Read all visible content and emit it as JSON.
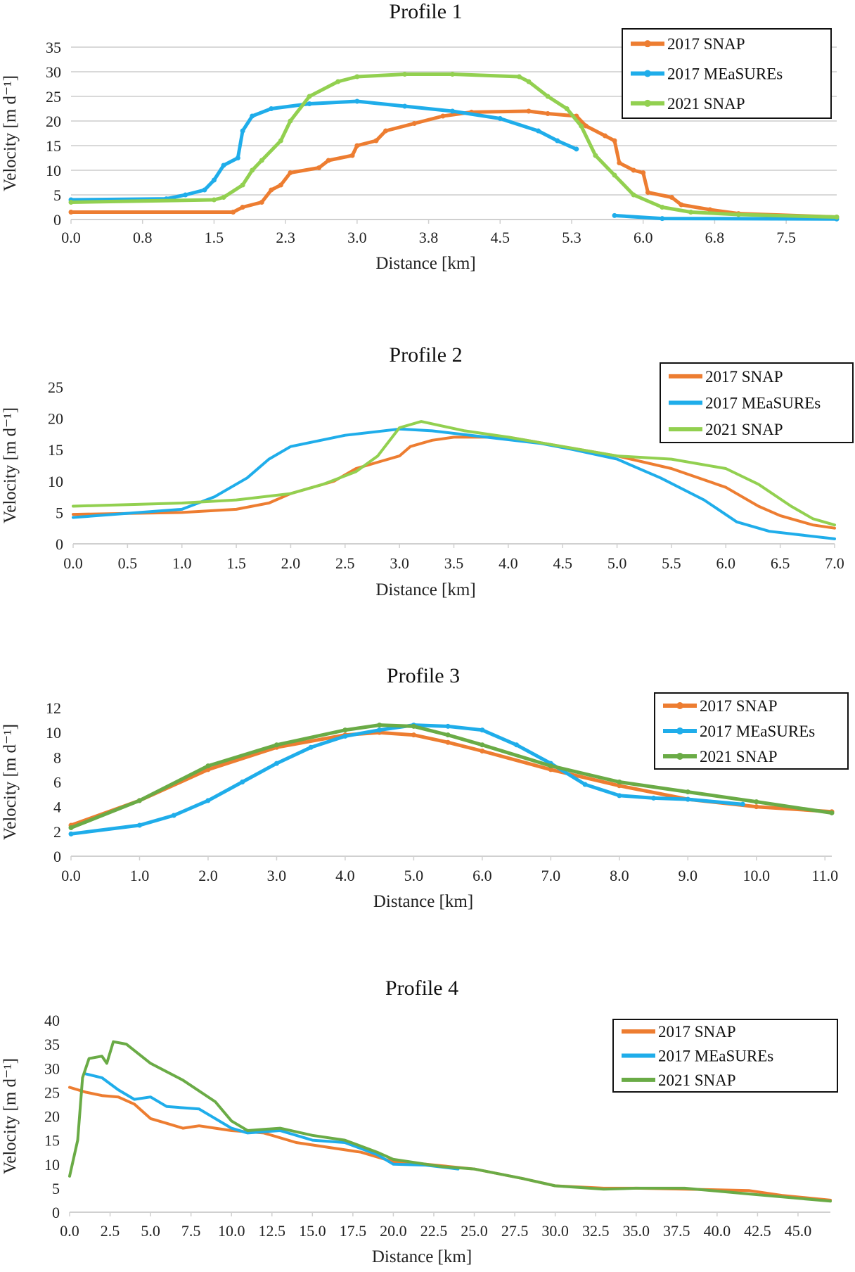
{
  "colors": {
    "snap2017": "#ED7D31",
    "measures2017": "#1FADEA",
    "snap2021_light": "#92D050",
    "snap2021_dark": "#6AAB46",
    "grid": "#D9D9D9"
  },
  "chart_data": [
    {
      "type": "line",
      "title": "Profile 1",
      "xlabel": "Distance [km]",
      "ylabel": "Velocity [m d⁻¹]",
      "xlim": [
        0,
        8.03
      ],
      "ylim": [
        0,
        35
      ],
      "yticks": [
        0,
        5,
        10,
        15,
        20,
        25,
        30,
        35
      ],
      "xticks": [
        0,
        0.75,
        1.5,
        2.25,
        3,
        3.75,
        4.5,
        5.25,
        6,
        6.75,
        7.5
      ],
      "xtick_labels": [
        "0.0",
        "0.8",
        "1.5",
        "2.3",
        "3.0",
        "3.8",
        "4.5",
        "5.3",
        "6.0",
        "6.8",
        "7.5"
      ],
      "grid": true,
      "legend": "top-right",
      "markers": true,
      "series": [
        {
          "name": "2017 SNAP",
          "color": "#ED7D31",
          "x": [
            0,
            1.7,
            1.8,
            2.0,
            2.1,
            2.2,
            2.3,
            2.6,
            2.7,
            2.95,
            3.0,
            3.2,
            3.3,
            3.6,
            3.9,
            4.2,
            4.8,
            5.0,
            5.3,
            5.4,
            5.6,
            5.7,
            5.75,
            5.9,
            6.0,
            6.05,
            6.3,
            6.4,
            6.7,
            7.0,
            8.03
          ],
          "y": [
            1.5,
            1.5,
            2.5,
            3.5,
            6,
            7,
            9.5,
            10.5,
            12,
            13,
            15,
            16,
            18,
            19.5,
            21,
            21.8,
            22,
            21.5,
            21,
            19,
            17,
            16,
            11.5,
            10,
            9.5,
            5.5,
            4.5,
            3,
            2,
            1.2,
            0.5
          ]
        },
        {
          "name": "2017 MEaSUREs",
          "color": "#1FADEA",
          "x": [
            0,
            1.0,
            1.2,
            1.4,
            1.5,
            1.6,
            1.75,
            1.8,
            1.9,
            2.1,
            2.5,
            3.0,
            3.5,
            4.0,
            4.5,
            4.9,
            5.1,
            5.3,
            null,
            5.7,
            6.2,
            8.03
          ],
          "y": [
            4,
            4.2,
            5,
            6,
            8,
            11,
            12.5,
            18,
            21,
            22.5,
            23.5,
            24,
            23,
            22,
            20.5,
            18,
            16,
            14.3,
            null,
            0.8,
            0.2,
            0.1
          ]
        },
        {
          "name": "2021 SNAP",
          "color": "#92D050",
          "x": [
            0,
            1.5,
            1.6,
            1.8,
            1.9,
            2.0,
            2.2,
            2.3,
            2.5,
            2.8,
            3.0,
            3.5,
            4.0,
            4.7,
            4.8,
            5.0,
            5.2,
            5.35,
            5.5,
            5.7,
            5.9,
            6.2,
            6.5,
            7.0,
            8.03
          ],
          "y": [
            3.5,
            4,
            4.5,
            7,
            10,
            12,
            16,
            20,
            25,
            28,
            29,
            29.5,
            29.5,
            29,
            28,
            25,
            22.5,
            19,
            13,
            9,
            5,
            2.5,
            1.5,
            1,
            0.5
          ]
        }
      ]
    },
    {
      "type": "line",
      "title": "Profile 2",
      "xlabel": "Distance [km]",
      "ylabel": "Velocity [m d⁻¹]",
      "xlim": [
        0,
        7
      ],
      "ylim": [
        0,
        25
      ],
      "yticks": [
        0,
        5,
        10,
        15,
        20,
        25
      ],
      "xticks": [
        0,
        0.5,
        1,
        1.5,
        2,
        2.5,
        3,
        3.5,
        4,
        4.5,
        5,
        5.5,
        6,
        6.5,
        7
      ],
      "xtick_labels": [
        "0.0",
        "0.5",
        "1.0",
        "1.5",
        "2.0",
        "2.5",
        "3.0",
        "3.5",
        "4.0",
        "4.5",
        "5.0",
        "5.5",
        "6.0",
        "6.5",
        "7.0"
      ],
      "grid": false,
      "legend": "top-right",
      "markers": false,
      "series": [
        {
          "name": "2017 SNAP",
          "color": "#ED7D31",
          "x": [
            0,
            1,
            1.5,
            1.8,
            2.0,
            2.2,
            2.4,
            2.6,
            2.8,
            3.0,
            3.1,
            3.3,
            3.5,
            4.0,
            4.5,
            5.0,
            5.5,
            6.0,
            6.3,
            6.5,
            6.8,
            7.0
          ],
          "y": [
            4.7,
            5,
            5.5,
            6.5,
            8,
            9,
            10,
            12,
            13,
            14,
            15.5,
            16.5,
            17,
            17,
            15.5,
            14,
            12,
            9,
            6,
            4.5,
            3,
            2.5
          ]
        },
        {
          "name": "2017 MEaSUREs",
          "color": "#1FADEA",
          "x": [
            0,
            1.0,
            1.3,
            1.6,
            1.8,
            2.0,
            2.5,
            3.0,
            3.3,
            3.8,
            4.3,
            4.6,
            5.0,
            5.4,
            5.8,
            6.1,
            6.4,
            7.0
          ],
          "y": [
            4.2,
            5.5,
            7.5,
            10.5,
            13.5,
            15.5,
            17.3,
            18.3,
            18,
            17,
            16,
            15,
            13.5,
            10.5,
            7,
            3.5,
            2,
            0.8
          ]
        },
        {
          "name": "2021 SNAP",
          "color": "#92D050",
          "x": [
            0,
            1.0,
            1.5,
            2.0,
            2.3,
            2.6,
            2.8,
            3.0,
            3.2,
            3.6,
            4.0,
            4.5,
            5.0,
            5.5,
            6.0,
            6.3,
            6.6,
            6.8,
            7.0
          ],
          "y": [
            6,
            6.5,
            7,
            8,
            9.5,
            11.5,
            14,
            18.5,
            19.5,
            18,
            17,
            15.5,
            14,
            13.5,
            12,
            9.5,
            6,
            4,
            3
          ]
        }
      ]
    },
    {
      "type": "line",
      "title": "Profile 3",
      "xlabel": "Distance [km]",
      "ylabel": "Velocity [m d⁻¹]",
      "xlim": [
        0,
        11.1
      ],
      "ylim": [
        0,
        12
      ],
      "yticks": [
        0,
        2,
        4,
        6,
        8,
        10,
        12
      ],
      "xticks": [
        0,
        1,
        2,
        3,
        4,
        5,
        6,
        7,
        8,
        9,
        10,
        11
      ],
      "xtick_labels": [
        "0.0",
        "1.0",
        "2.0",
        "3.0",
        "4.0",
        "5.0",
        "6.0",
        "7.0",
        "8.0",
        "9.0",
        "10.0",
        "11.0"
      ],
      "grid": false,
      "legend": "top-right",
      "markers": true,
      "series": [
        {
          "name": "2017 SNAP",
          "color": "#ED7D31",
          "x": [
            0,
            1,
            2,
            3,
            4,
            4.5,
            5,
            5.5,
            6,
            7,
            8,
            9,
            10,
            11.1
          ],
          "y": [
            2.5,
            4.5,
            7,
            8.8,
            9.8,
            10,
            9.8,
            9.2,
            8.5,
            7,
            5.7,
            4.6,
            4,
            3.6
          ]
        },
        {
          "name": "2017 MEaSUREs",
          "color": "#1FADEA",
          "x": [
            0,
            1,
            1.5,
            2,
            2.5,
            3,
            3.5,
            4,
            4.5,
            5,
            5.5,
            6,
            6.5,
            7,
            7.5,
            8,
            8.5,
            9,
            9.8
          ],
          "y": [
            1.8,
            2.5,
            3.3,
            4.5,
            6,
            7.5,
            8.8,
            9.7,
            10.2,
            10.6,
            10.5,
            10.2,
            9,
            7.5,
            5.8,
            4.9,
            4.7,
            4.6,
            4.2
          ]
        },
        {
          "name": "2021 SNAP",
          "color": "#6AAB46",
          "x": [
            0,
            1,
            2,
            3,
            4,
            4.5,
            5,
            5.5,
            6,
            7,
            8,
            9,
            10,
            11.1
          ],
          "y": [
            2.3,
            4.5,
            7.3,
            9,
            10.2,
            10.6,
            10.5,
            9.8,
            9,
            7.3,
            6,
            5.2,
            4.4,
            3.5
          ]
        }
      ]
    },
    {
      "type": "line",
      "title": "Profile 4",
      "xlabel": "Distance [km]",
      "ylabel": "Velocity [m d⁻¹]",
      "xlim": [
        0,
        47
      ],
      "ylim": [
        0,
        40
      ],
      "yticks": [
        0,
        5,
        10,
        15,
        20,
        25,
        30,
        35,
        40
      ],
      "xticks": [
        0,
        2.5,
        5,
        7.5,
        10,
        12.5,
        15,
        17.5,
        20,
        22.5,
        25,
        27.5,
        30,
        32.5,
        35,
        37.5,
        40,
        42.5,
        45
      ],
      "xtick_labels": [
        "0.0",
        "2.5",
        "5.0",
        "7.5",
        "10.0",
        "12.5",
        "15.0",
        "17.5",
        "20.0",
        "22.5",
        "25.0",
        "27.5",
        "30.0",
        "32.5",
        "35.0",
        "37.5",
        "40.0",
        "42.5",
        "45.0"
      ],
      "grid": false,
      "legend": "top-right",
      "markers": false,
      "series": [
        {
          "name": "2017 SNAP",
          "color": "#ED7D31",
          "x": [
            0,
            1,
            2,
            3,
            4,
            5,
            6,
            7,
            8,
            9,
            10,
            12,
            14,
            16,
            18,
            20,
            22,
            25,
            28,
            30,
            33,
            35,
            38,
            42,
            44,
            47
          ],
          "y": [
            26,
            25,
            24.3,
            24,
            22.5,
            19.5,
            18.5,
            17.5,
            18,
            17.5,
            17,
            16.5,
            14.5,
            13.5,
            12.5,
            10.5,
            10,
            9,
            7,
            5.5,
            5,
            5,
            4.8,
            4.5,
            3.5,
            2.5
          ]
        },
        {
          "name": "2017 MEaSUREs",
          "color": "#1FADEA",
          "x": [
            1,
            2,
            3,
            4,
            5,
            6,
            8,
            10,
            11,
            13,
            15,
            17,
            19,
            20,
            22,
            24
          ],
          "y": [
            28.8,
            28,
            25.5,
            23.5,
            24,
            22,
            21.5,
            17.5,
            16.5,
            17,
            15,
            14.5,
            12,
            10,
            9.8,
            9
          ]
        },
        {
          "name": "2021 SNAP",
          "color": "#6AAB46",
          "x": [
            0,
            0.5,
            0.8,
            1.2,
            2,
            2.3,
            2.7,
            3.5,
            5,
            7,
            9,
            10,
            11,
            13,
            15,
            17,
            19,
            20,
            23,
            25,
            28,
            30,
            33,
            35,
            38,
            42,
            47
          ],
          "y": [
            7.5,
            15,
            28,
            32,
            32.5,
            31,
            35.5,
            35,
            31,
            27.5,
            23,
            19,
            17,
            17.5,
            16,
            15,
            12.5,
            11,
            9.5,
            9,
            7,
            5.5,
            4.8,
            5,
            5,
            3.8,
            2.3
          ]
        }
      ]
    }
  ]
}
